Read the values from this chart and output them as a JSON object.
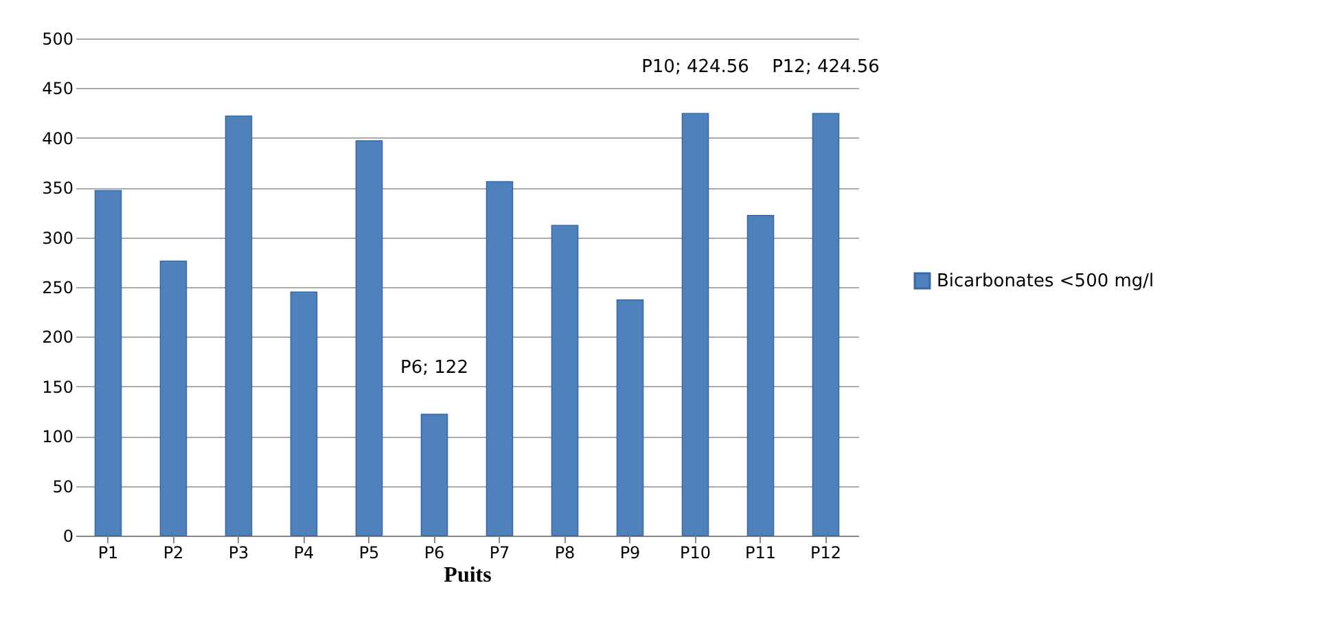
{
  "chart_data": {
    "type": "bar",
    "xlabel": "Puits",
    "categories": [
      "P1",
      "P2",
      "P3",
      "P4",
      "P5",
      "P6",
      "P7",
      "P8",
      "P9",
      "P10",
      "P11",
      "P12"
    ],
    "series": [
      {
        "name": "Bicarbonates <500 mg/l",
        "color": "#4f81bd",
        "values": [
          347,
          276,
          422,
          245,
          397,
          122,
          356,
          312,
          237,
          424.56,
          322,
          424.56
        ],
        "value_labels": [
          null,
          null,
          null,
          null,
          null,
          "P6; 122",
          null,
          null,
          null,
          "P10; 424.56",
          null,
          "P12; 424.56"
        ]
      }
    ],
    "ylim": [
      0,
      500
    ],
    "yticks": [
      0,
      50,
      100,
      150,
      200,
      250,
      300,
      350,
      400,
      450,
      500
    ],
    "grid": "y",
    "legend": "right"
  }
}
